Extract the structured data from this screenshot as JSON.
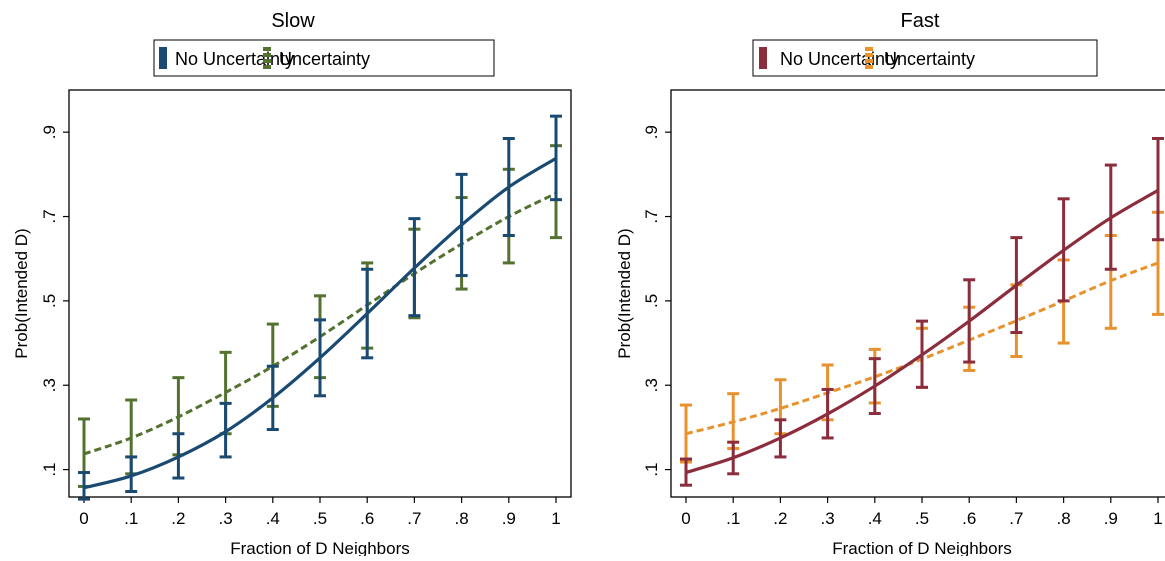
{
  "chart_data": [
    {
      "type": "line",
      "title": "Slow",
      "xlabel": "Fraction of D Neighbors",
      "ylabel": "Prob(Intended D)",
      "xlim": [
        0,
        1
      ],
      "ylim": [
        0.035,
        1.0
      ],
      "x_ticks": [
        {
          "value": 0,
          "label": "0"
        },
        {
          "value": 0.1,
          "label": ".1"
        },
        {
          "value": 0.2,
          "label": ".2"
        },
        {
          "value": 0.3,
          "label": ".3"
        },
        {
          "value": 0.4,
          "label": ".4"
        },
        {
          "value": 0.5,
          "label": ".5"
        },
        {
          "value": 0.6,
          "label": ".6"
        },
        {
          "value": 0.7,
          "label": ".7"
        },
        {
          "value": 0.8,
          "label": ".8"
        },
        {
          "value": 0.9,
          "label": ".9"
        },
        {
          "value": 1,
          "label": "1"
        }
      ],
      "y_ticks": [
        {
          "value": 0.1,
          "label": ".1"
        },
        {
          "value": 0.3,
          "label": ".3"
        },
        {
          "value": 0.5,
          "label": ".5"
        },
        {
          "value": 0.7,
          "label": ".7"
        },
        {
          "value": 0.9,
          "label": ".9"
        }
      ],
      "grid": false,
      "legend_position": "top",
      "x": [
        0,
        0.1,
        0.2,
        0.3,
        0.4,
        0.5,
        0.6,
        0.7,
        0.8,
        0.9,
        1
      ],
      "series": [
        {
          "name": "No Uncertainty",
          "color": "#1a4a72",
          "dashed": false,
          "values": [
            0.057,
            0.085,
            0.13,
            0.19,
            0.27,
            0.365,
            0.47,
            0.578,
            0.68,
            0.77,
            0.838
          ],
          "lower": [
            0.03,
            0.048,
            0.08,
            0.13,
            0.195,
            0.275,
            0.365,
            0.465,
            0.56,
            0.655,
            0.74
          ],
          "upper": [
            0.093,
            0.13,
            0.185,
            0.257,
            0.345,
            0.455,
            0.575,
            0.695,
            0.8,
            0.885,
            0.938
          ]
        },
        {
          "name": "Uncertainty",
          "color": "#53712f",
          "dashed": true,
          "values": [
            0.137,
            0.175,
            0.225,
            0.283,
            0.345,
            0.415,
            0.49,
            0.565,
            0.635,
            0.7,
            0.755
          ],
          "lower": [
            0.06,
            0.09,
            0.135,
            0.185,
            0.25,
            0.318,
            0.388,
            0.46,
            0.528,
            0.59,
            0.65
          ],
          "upper": [
            0.22,
            0.265,
            0.318,
            0.378,
            0.445,
            0.512,
            0.59,
            0.67,
            0.745,
            0.812,
            0.868
          ]
        }
      ]
    },
    {
      "type": "line",
      "title": "Fast",
      "xlabel": "Fraction of D Neighbors",
      "ylabel": "Prob(Intended D)",
      "xlim": [
        0,
        1
      ],
      "ylim": [
        0.035,
        1.0
      ],
      "x_ticks": [
        {
          "value": 0,
          "label": "0"
        },
        {
          "value": 0.1,
          "label": ".1"
        },
        {
          "value": 0.2,
          "label": ".2"
        },
        {
          "value": 0.3,
          "label": ".3"
        },
        {
          "value": 0.4,
          "label": ".4"
        },
        {
          "value": 0.5,
          "label": ".5"
        },
        {
          "value": 0.6,
          "label": ".6"
        },
        {
          "value": 0.7,
          "label": ".7"
        },
        {
          "value": 0.8,
          "label": ".8"
        },
        {
          "value": 0.9,
          "label": ".9"
        },
        {
          "value": 1,
          "label": "1"
        }
      ],
      "y_ticks": [
        {
          "value": 0.1,
          "label": ".1"
        },
        {
          "value": 0.3,
          "label": ".3"
        },
        {
          "value": 0.5,
          "label": ".5"
        },
        {
          "value": 0.7,
          "label": ".7"
        },
        {
          "value": 0.9,
          "label": ".9"
        }
      ],
      "grid": false,
      "legend_position": "top",
      "x": [
        0,
        0.1,
        0.2,
        0.3,
        0.4,
        0.5,
        0.6,
        0.7,
        0.8,
        0.9,
        1
      ],
      "series": [
        {
          "name": "No Uncertainty",
          "color": "#8b2d3c",
          "dashed": false,
          "values": [
            0.093,
            0.128,
            0.175,
            0.232,
            0.298,
            0.372,
            0.452,
            0.537,
            0.62,
            0.697,
            0.762
          ],
          "lower": [
            0.063,
            0.09,
            0.13,
            0.175,
            0.233,
            0.295,
            0.355,
            0.425,
            0.5,
            0.575,
            0.645
          ],
          "upper": [
            0.125,
            0.165,
            0.218,
            0.29,
            0.363,
            0.452,
            0.55,
            0.65,
            0.742,
            0.822,
            0.885
          ]
        },
        {
          "name": "Uncertainty",
          "color": "#e8922e",
          "dashed": true,
          "values": [
            0.185,
            0.213,
            0.245,
            0.282,
            0.32,
            0.362,
            0.407,
            0.453,
            0.5,
            0.548,
            0.59
          ],
          "lower": [
            0.118,
            0.15,
            0.185,
            0.218,
            0.258,
            0.295,
            0.335,
            0.368,
            0.4,
            0.435,
            0.468
          ],
          "upper": [
            0.253,
            0.28,
            0.313,
            0.348,
            0.385,
            0.435,
            0.485,
            0.538,
            0.597,
            0.655,
            0.71
          ]
        }
      ]
    }
  ]
}
